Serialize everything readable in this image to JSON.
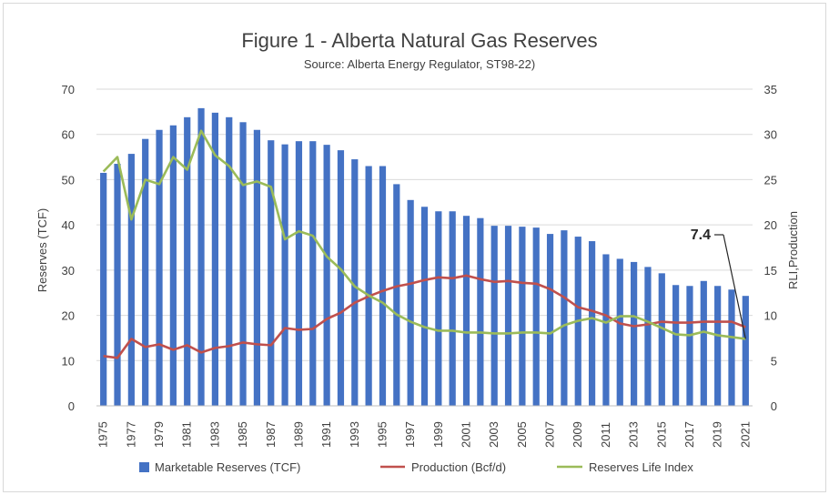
{
  "chart_data": {
    "type": "bar",
    "title": "Figure 1 - Alberta Natural Gas Reserves",
    "subtitle": "Source: Alberta Energy Regulator, ST98-22)",
    "ylabel": "Reserves  (TCF)",
    "y2label": "RLI,Production",
    "ylim": [
      0,
      70
    ],
    "y2lim": [
      0,
      35
    ],
    "yticks": [
      "0",
      "10",
      "20",
      "30",
      "40",
      "50",
      "60",
      "70"
    ],
    "y2ticks": [
      "0",
      "5",
      "10",
      "15",
      "20",
      "25",
      "30",
      "35"
    ],
    "categories": [
      "1975",
      "1976",
      "1977",
      "1978",
      "1979",
      "1980",
      "1981",
      "1982",
      "1983",
      "1984",
      "1985",
      "1986",
      "1987",
      "1988",
      "1989",
      "1990",
      "1991",
      "1992",
      "1993",
      "1994",
      "1995",
      "1996",
      "1997",
      "1998",
      "1999",
      "2000",
      "2001",
      "2002",
      "2003",
      "2004",
      "2005",
      "2006",
      "2007",
      "2008",
      "2009",
      "2010",
      "2011",
      "2012",
      "2013",
      "2014",
      "2015",
      "2016",
      "2017",
      "2018",
      "2019",
      "2020",
      "2021"
    ],
    "xticks": [
      "1975",
      "1977",
      "1979",
      "1981",
      "1983",
      "1985",
      "1987",
      "1989",
      "1991",
      "1993",
      "1995",
      "1997",
      "1999",
      "2001",
      "2003",
      "2005",
      "2007",
      "2009",
      "2011",
      "2013",
      "2015",
      "2017",
      "2019",
      "2021"
    ],
    "grid": true,
    "legend_position": "bottom",
    "colors": {
      "bars": "#4472c4",
      "production": "#c0504d",
      "rli": "#9bbb59",
      "grid": "#d9d9d9",
      "text": "#404040"
    },
    "series": [
      {
        "name": "Marketable Reserves (TCF)",
        "type": "bar",
        "axis": "left",
        "values": [
          51.5,
          53.5,
          55.7,
          59,
          61,
          62,
          63.8,
          65.8,
          64.8,
          63.8,
          62.7,
          61,
          58.7,
          57.8,
          58.5,
          58.5,
          57.7,
          56.5,
          54.5,
          53,
          53,
          49,
          45.5,
          44,
          43,
          43,
          42,
          41.5,
          39.8,
          39.8,
          39.6,
          39.4,
          38,
          38.8,
          37.4,
          36.4,
          33.5,
          32.5,
          31.8,
          30.7,
          29.3,
          26.7,
          26.5,
          27.6,
          26.5,
          25.7,
          24.3
        ]
      },
      {
        "name": "Production  (Bcf/d)",
        "type": "line",
        "axis": "right",
        "values": [
          5.5,
          5.3,
          7.4,
          6.5,
          6.8,
          6.2,
          6.7,
          5.9,
          6.4,
          6.6,
          7.0,
          6.8,
          6.7,
          8.6,
          8.4,
          8.5,
          9.6,
          10.3,
          11.4,
          12.1,
          12.7,
          13.2,
          13.5,
          13.9,
          14.2,
          14.1,
          14.4,
          14.0,
          13.7,
          13.8,
          13.6,
          13.5,
          12.9,
          12.0,
          10.9,
          10.5,
          10.0,
          9.1,
          8.8,
          9.0,
          9.3,
          9.2,
          9.2,
          9.3,
          9.3,
          9.3,
          8.7
        ]
      },
      {
        "name": "Reserves Life Index",
        "type": "line",
        "axis": "right",
        "values": [
          25.9,
          27.5,
          20.6,
          25.0,
          24.5,
          27.5,
          26.1,
          30.4,
          27.7,
          26.5,
          24.4,
          24.8,
          24.2,
          18.4,
          19.3,
          18.8,
          16.5,
          15.1,
          13.2,
          12.2,
          11.4,
          10.1,
          9.3,
          8.7,
          8.3,
          8.3,
          8.1,
          8.1,
          8.0,
          8.0,
          8.1,
          8.1,
          8.0,
          8.9,
          9.4,
          9.7,
          9.2,
          9.9,
          9.9,
          9.3,
          8.6,
          7.9,
          7.8,
          8.2,
          7.8,
          7.6,
          7.4
        ]
      }
    ],
    "annotation": {
      "text": "7.4",
      "target_category": "2021",
      "target_value": 7.4
    }
  }
}
